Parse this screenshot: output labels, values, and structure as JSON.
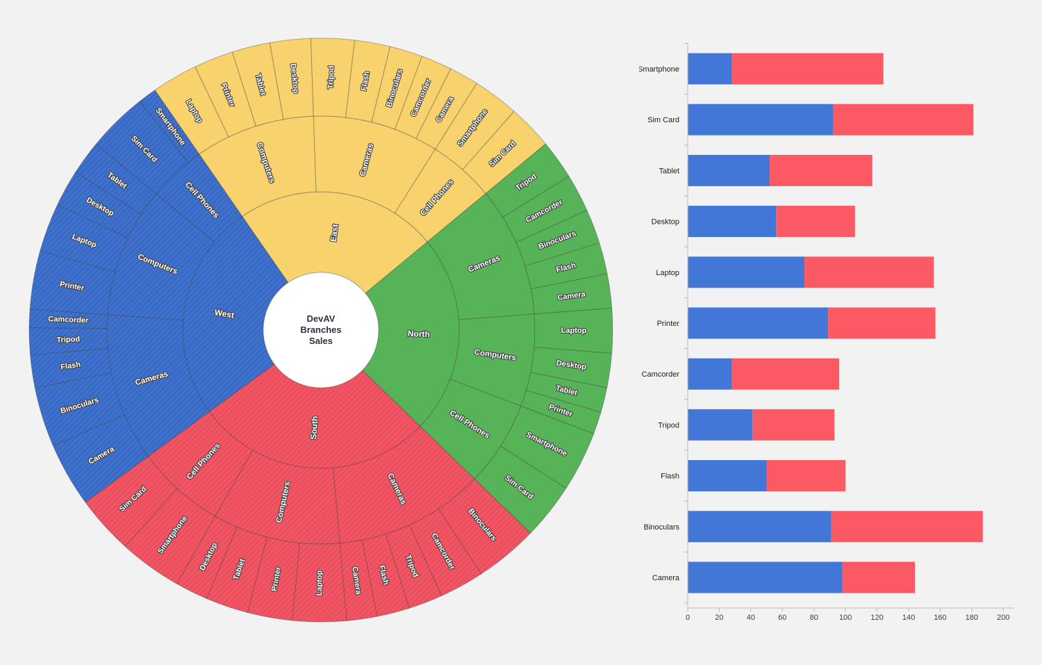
{
  "page": {
    "background_color": "#f2f2f2",
    "left_chart_kind": "sunburst",
    "right_chart_kind": "stacked horizontal bar"
  },
  "sunburst_center": {
    "line1": "DevAV",
    "line2": "Branches",
    "line3": "Sales"
  },
  "chart_data": [
    {
      "type": "sunburst",
      "title": "DevAV Branches Sales",
      "center_label_lines": [
        "DevAV",
        "Branches",
        "Sales"
      ],
      "rings": [
        "branch",
        "category",
        "product"
      ],
      "label_style": "white bold with dark outline, rotated radially",
      "branches": [
        {
          "name": "East",
          "color": "#f8d26d",
          "hatch": false,
          "categories": [
            {
              "name": "Computers",
              "products": [
                {
                  "name": "Laptop",
                  "value": 70
                },
                {
                  "name": "Printer",
                  "value": 60
                },
                {
                  "name": "Tablet",
                  "value": 58
                },
                {
                  "name": "Desktop",
                  "value": 62
                }
              ]
            },
            {
              "name": "Cameras",
              "products": [
                {
                  "name": "Tripod",
                  "value": 66
                },
                {
                  "name": "Flash",
                  "value": 54
                },
                {
                  "name": "Binoculars",
                  "value": 50
                },
                {
                  "name": "Camcorder",
                  "value": 47
                },
                {
                  "name": "Camera",
                  "value": 45
                }
              ]
            },
            {
              "name": "Cell Phones",
              "products": [
                {
                  "name": "Smartphone",
                  "value": 70
                },
                {
                  "name": "Sim Card",
                  "value": 68
                }
              ]
            }
          ]
        },
        {
          "name": "North",
          "color": "#57b357",
          "hatch": false,
          "categories": [
            {
              "name": "Cameras",
              "products": [
                {
                  "name": "Tripod",
                  "value": 60
                },
                {
                  "name": "Camcorder",
                  "value": 58
                },
                {
                  "name": "Binoculars",
                  "value": 52
                },
                {
                  "name": "Flash",
                  "value": 48
                },
                {
                  "name": "Camera",
                  "value": 52
                }
              ]
            },
            {
              "name": "Computers",
              "products": [
                {
                  "name": "Laptop",
                  "value": 68
                },
                {
                  "name": "Desktop",
                  "value": 52
                },
                {
                  "name": "Tablet",
                  "value": 38
                },
                {
                  "name": "Printer",
                  "value": 34
                }
              ]
            },
            {
              "name": "Cell Phones",
              "products": [
                {
                  "name": "Smartphone",
                  "value": 92
                },
                {
                  "name": "Sim Card",
                  "value": 86
                }
              ]
            }
          ]
        },
        {
          "name": "South",
          "color": "#f15463",
          "hatch": true,
          "hatch_color": "#c23a4c",
          "categories": [
            {
              "name": "Cameras",
              "products": [
                {
                  "name": "Binoculars",
                  "value": 96
                },
                {
                  "name": "Camcorder",
                  "value": 68
                },
                {
                  "name": "Tripod",
                  "value": 52
                },
                {
                  "name": "Flash",
                  "value": 50
                },
                {
                  "name": "Camera",
                  "value": 46
                }
              ]
            },
            {
              "name": "Computers",
              "products": [
                {
                  "name": "Laptop",
                  "value": 82
                },
                {
                  "name": "Printer",
                  "value": 68
                },
                {
                  "name": "Tablet",
                  "value": 65
                },
                {
                  "name": "Desktop",
                  "value": 50
                }
              ]
            },
            {
              "name": "Cell Phones",
              "products": [
                {
                  "name": "Smartphone",
                  "value": 96
                },
                {
                  "name": "Sim Card",
                  "value": 89
                }
              ]
            }
          ]
        },
        {
          "name": "West",
          "color": "#3e70cc",
          "hatch": true,
          "hatch_color": "#1f4da0",
          "categories": [
            {
              "name": "Cameras",
              "products": [
                {
                  "name": "Camera",
                  "value": 98
                },
                {
                  "name": "Binoculars",
                  "value": 91
                },
                {
                  "name": "Flash",
                  "value": 50
                },
                {
                  "name": "Tripod",
                  "value": 41
                },
                {
                  "name": "Camcorder",
                  "value": 28
                }
              ]
            },
            {
              "name": "Computers",
              "products": [
                {
                  "name": "Printer",
                  "value": 89
                },
                {
                  "name": "Laptop",
                  "value": 74
                },
                {
                  "name": "Desktop",
                  "value": 56
                },
                {
                  "name": "Tablet",
                  "value": 52
                }
              ]
            },
            {
              "name": "Cell Phones",
              "products": [
                {
                  "name": "Sim Card",
                  "value": 92
                },
                {
                  "name": "Smartphone",
                  "value": 28
                }
              ]
            }
          ]
        }
      ]
    },
    {
      "type": "bar",
      "orientation": "horizontal",
      "stacked": true,
      "grid": false,
      "legend": "none",
      "categories": [
        "Smartphone",
        "Sim Card",
        "Tablet",
        "Desktop",
        "Laptop",
        "Printer",
        "Camcorder",
        "Tripod",
        "Flash",
        "Binoculars",
        "Camera"
      ],
      "series": [
        {
          "name": "West",
          "color": "#4277d8",
          "values": [
            28,
            92,
            52,
            56,
            74,
            89,
            28,
            41,
            50,
            91,
            98
          ]
        },
        {
          "name": "South",
          "color": "#fb5a64",
          "values": [
            96,
            89,
            65,
            50,
            82,
            68,
            68,
            52,
            50,
            96,
            46
          ]
        }
      ],
      "xlim": [
        0,
        200
      ],
      "xticks": [
        0,
        20,
        40,
        60,
        80,
        100,
        120,
        140,
        160,
        180,
        200
      ]
    }
  ]
}
